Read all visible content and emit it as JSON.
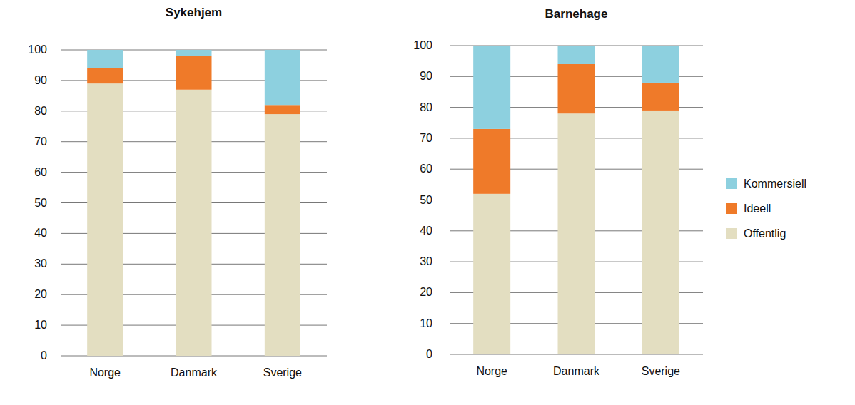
{
  "chart_data": [
    {
      "type": "bar",
      "title": "Sykehjem",
      "stacked": true,
      "grid": true,
      "categories": [
        "Norge",
        "Danmark",
        "Sverige"
      ],
      "series": [
        {
          "name": "Offentlig",
          "color": "#e3dec1",
          "values": [
            89,
            87,
            79
          ]
        },
        {
          "name": "Ideell",
          "color": "#ef7a29",
          "values": [
            5,
            11,
            3
          ]
        },
        {
          "name": "Kommersiell",
          "color": "#8dd0df",
          "values": [
            6,
            2,
            18
          ]
        }
      ],
      "ylim": [
        0,
        100
      ],
      "yticks": [
        0,
        10,
        20,
        30,
        40,
        50,
        60,
        70,
        80,
        90,
        100
      ]
    },
    {
      "type": "bar",
      "title": "Barnehage",
      "stacked": true,
      "grid": true,
      "legend": "right",
      "categories": [
        "Norge",
        "Danmark",
        "Sverige"
      ],
      "series": [
        {
          "name": "Offentlig",
          "color": "#e3dec1",
          "values": [
            52,
            78,
            79
          ]
        },
        {
          "name": "Ideell",
          "color": "#ef7a29",
          "values": [
            21,
            16,
            9
          ]
        },
        {
          "name": "Kommersiell",
          "color": "#8dd0df",
          "values": [
            27,
            6,
            12
          ]
        }
      ],
      "ylim": [
        0,
        100
      ],
      "yticks": [
        0,
        10,
        20,
        30,
        40,
        50,
        60,
        70,
        80,
        90,
        100
      ]
    }
  ]
}
